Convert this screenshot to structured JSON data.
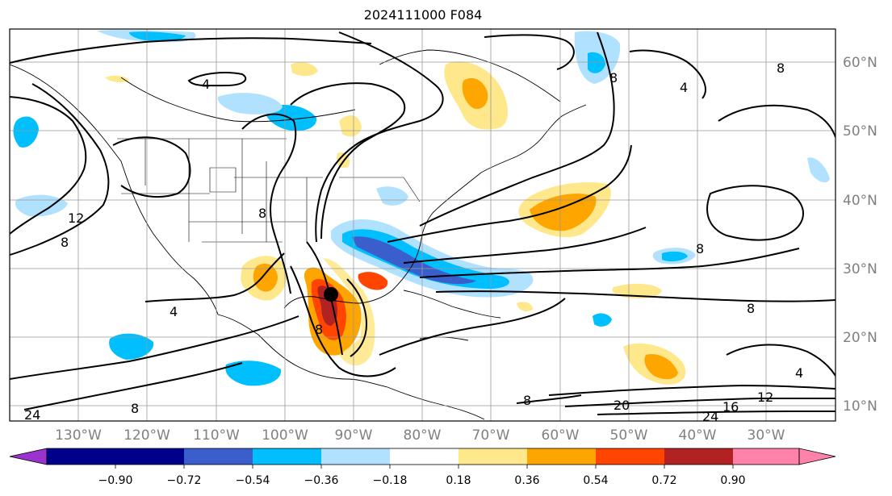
{
  "title": "2024111000 F084",
  "map": {
    "projection": "lat-lon",
    "lon_range": [
      -140,
      -20
    ],
    "lat_range": [
      7,
      65
    ],
    "lon_labels": [
      "130°W",
      "120°W",
      "110°W",
      "100°W",
      "90°W",
      "80°W",
      "70°W",
      "60°W",
      "50°W",
      "40°W",
      "30°W"
    ],
    "lat_labels": [
      "60°N",
      "50°N",
      "40°N",
      "30°N",
      "20°N",
      "10°N"
    ],
    "contour_labels": [
      "4",
      "8",
      "12",
      "8",
      "4",
      "8",
      "8",
      "8",
      "4",
      "8",
      "8",
      "20",
      "12",
      "16",
      "24",
      "8",
      "24",
      "8",
      "4"
    ],
    "storm_marker": {
      "lon": -93.5,
      "lat": 26.3
    }
  },
  "colorbar": {
    "ticks": [
      "−0.90",
      "−0.72",
      "−0.54",
      "−0.36",
      "−0.18",
      "0.18",
      "0.36",
      "0.54",
      "0.72",
      "0.90"
    ],
    "colors": [
      "#9a32cd",
      "#00008b",
      "#3a5fcd",
      "#00bfff",
      "#b0e2ff",
      "#ffffff",
      "#ffe88c",
      "#ffa500",
      "#ff4500",
      "#b22222",
      "#ff82ab"
    ]
  }
}
